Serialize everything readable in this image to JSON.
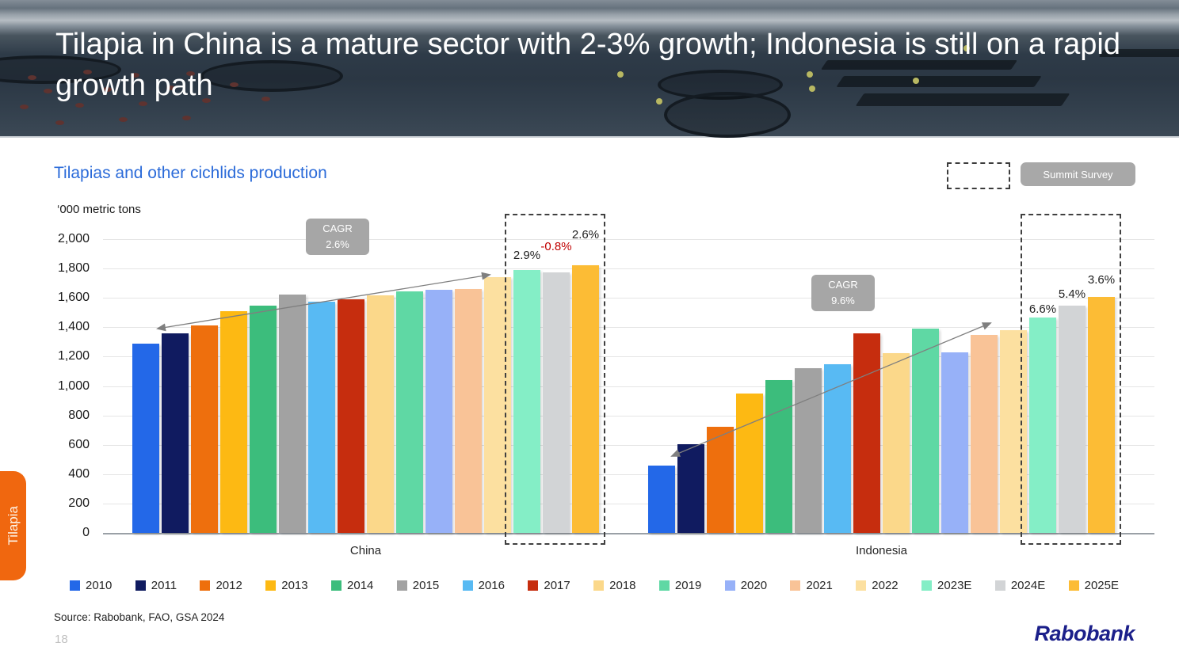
{
  "header": {
    "title": "Tilapia in China is a mature sector with 2-3% growth; Indonesia is still on a rapid growth path"
  },
  "controls": {
    "summit_survey_label": "Summit Survey"
  },
  "chart_data": {
    "type": "bar",
    "title": "Tilapias and other cichlids production",
    "unit_label": "‘000 metric tons",
    "ylim": [
      0,
      2000
    ],
    "ytick_interval": 200,
    "ytick_labels": [
      "0",
      "200",
      "400",
      "600",
      "800",
      "1,000",
      "1,200",
      "1,400",
      "1,600",
      "1,800",
      "2,000"
    ],
    "grid": true,
    "legend_position": "bottom",
    "categories": [
      "2010",
      "2011",
      "2012",
      "2013",
      "2014",
      "2015",
      "2016",
      "2017",
      "2018",
      "2019",
      "2020",
      "2021",
      "2022",
      "2023E",
      "2024E",
      "2025E"
    ],
    "series_colors": [
      "#2368e8",
      "#101b60",
      "#ee6f0d",
      "#fdb913",
      "#3cbd7c",
      "#a2a2a2",
      "#58baf3",
      "#c62d0e",
      "#fbd88a",
      "#5fd8a4",
      "#97b1f8",
      "#f9c397",
      "#fce0a0",
      "#84eec6",
      "#d2d4d6",
      "#fcbc35"
    ],
    "estimate_years": [
      "2023E",
      "2024E",
      "2025E"
    ],
    "series": [
      {
        "name": "China",
        "values": [
          1290,
          1360,
          1415,
          1510,
          1545,
          1620,
          1575,
          1590,
          1615,
          1645,
          1655,
          1660,
          1740,
          1790,
          1776,
          1822
        ],
        "cagr_label": "CAGR",
        "cagr_value": "2.6%",
        "estimate_annotations": [
          "2.9%",
          "-0.8%",
          "2.6%"
        ]
      },
      {
        "name": "Indonesia",
        "values": [
          460,
          605,
          720,
          950,
          1040,
          1120,
          1150,
          1360,
          1225,
          1390,
          1230,
          1350,
          1378,
          1469,
          1548,
          1604
        ],
        "cagr_label": "CAGR",
        "cagr_value": "9.6%",
        "estimate_annotations": [
          "6.6%",
          "5.4%",
          "3.6%"
        ]
      }
    ],
    "annotation_negative_color": "#c00000"
  },
  "footer": {
    "source": "Source: Rabobank, FAO, GSA 2024",
    "page_number": "18",
    "logo": "Rabobank"
  },
  "side_tab": {
    "label": "Tilapia"
  }
}
